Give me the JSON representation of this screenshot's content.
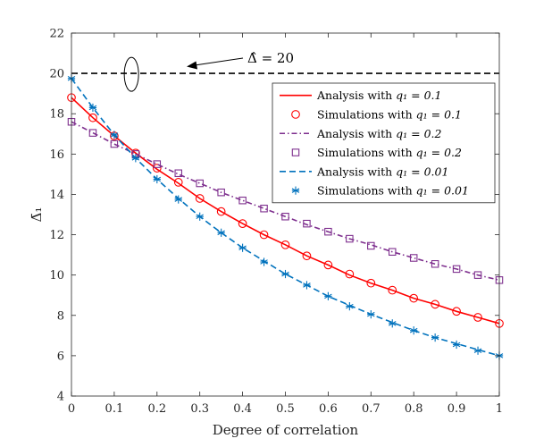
{
  "chart_data": {
    "type": "line",
    "title": "",
    "xlabel": "Degree of correlation",
    "ylabel": "Δ̄₁",
    "xlim": [
      0,
      1
    ],
    "ylim": [
      4,
      22
    ],
    "xticks": [
      0,
      0.1,
      0.2,
      0.3,
      0.4,
      0.5,
      0.6,
      0.7,
      0.8,
      0.9,
      1
    ],
    "xtick_labels": [
      "0",
      "0.1",
      "0.2",
      "0.3",
      "0.4",
      "0.5",
      "0.6",
      "0.7",
      "0.8",
      "0.9",
      "1"
    ],
    "yticks": [
      4,
      6,
      8,
      10,
      12,
      14,
      16,
      18,
      20,
      22
    ],
    "ytick_labels": [
      "4",
      "6",
      "8",
      "10",
      "12",
      "14",
      "16",
      "18",
      "20",
      "22"
    ],
    "grid": false,
    "legend_position": "top-right",
    "colors": {
      "red": "#ff0000",
      "purple": "#7e2f8e",
      "blue": "#0072bd",
      "black": "#000000",
      "axis": "#262626"
    },
    "reference_line": {
      "y": 20,
      "style": "dashed",
      "color": "#000000",
      "annotation": "Δ̂ = 20",
      "annotation_target_x": 0.255
    },
    "x": [
      0,
      0.05,
      0.1,
      0.15,
      0.2,
      0.25,
      0.3,
      0.35,
      0.4,
      0.45,
      0.5,
      0.55,
      0.6,
      0.65,
      0.7,
      0.75,
      0.8,
      0.85,
      0.9,
      0.95,
      1
    ],
    "series": [
      {
        "name": "Analysis with q1 = 0.1",
        "label_prefix": "Analysis with",
        "label_math": "q₁ = 0.1",
        "kind": "line",
        "dash": "solid",
        "marker": "none",
        "color": "#ff0000",
        "values": [
          18.8,
          17.8,
          16.9,
          16.05,
          15.25,
          14.55,
          13.8,
          13.15,
          12.55,
          12.0,
          11.5,
          10.95,
          10.5,
          10.0,
          9.6,
          9.25,
          8.85,
          8.55,
          8.2,
          7.9,
          7.6
        ]
      },
      {
        "name": "Simulations with q1 = 0.1",
        "label_prefix": "Simulations with",
        "label_math": "q₁ = 0.1",
        "kind": "marker",
        "dash": "none",
        "marker": "circle",
        "color": "#ff0000",
        "values": [
          18.8,
          17.8,
          16.9,
          16.05,
          15.3,
          14.6,
          13.8,
          13.15,
          12.55,
          12.0,
          11.5,
          10.95,
          10.5,
          10.05,
          9.6,
          9.25,
          8.85,
          8.55,
          8.2,
          7.9,
          7.6
        ]
      },
      {
        "name": "Analysis with q1 = 0.2",
        "label_prefix": "Analysis with",
        "label_math": "q₁ = 0.2",
        "kind": "line",
        "dash": "dashdot",
        "marker": "none",
        "color": "#7e2f8e",
        "values": [
          17.6,
          17.05,
          16.5,
          16.0,
          15.5,
          15.0,
          14.55,
          14.1,
          13.7,
          13.3,
          12.9,
          12.5,
          12.15,
          11.8,
          11.5,
          11.15,
          10.85,
          10.55,
          10.3,
          10.0,
          9.75
        ]
      },
      {
        "name": "Simulations with q1 = 0.2",
        "label_prefix": "Simulations with",
        "label_math": "q₁ = 0.2",
        "kind": "marker",
        "dash": "none",
        "marker": "square",
        "color": "#7e2f8e",
        "values": [
          17.6,
          17.05,
          16.5,
          16.0,
          15.5,
          15.05,
          14.55,
          14.1,
          13.7,
          13.3,
          12.9,
          12.55,
          12.15,
          11.8,
          11.45,
          11.15,
          10.85,
          10.55,
          10.3,
          10.0,
          9.75
        ]
      },
      {
        "name": "Analysis with q1 = 0.01",
        "label_prefix": "Analysis with",
        "label_math": "q₁ = 0.01",
        "kind": "line",
        "dash": "dashed",
        "marker": "none",
        "color": "#0072bd",
        "values": [
          19.75,
          18.3,
          16.95,
          15.8,
          14.75,
          13.8,
          12.9,
          12.1,
          11.35,
          10.7,
          10.05,
          9.5,
          8.95,
          8.5,
          8.05,
          7.65,
          7.25,
          6.9,
          6.6,
          6.3,
          6.0
        ]
      },
      {
        "name": "Simulations with q1 = 0.01",
        "label_prefix": "Simulations with",
        "label_math": "q₁ = 0.01",
        "kind": "marker",
        "dash": "none",
        "marker": "asterisk",
        "color": "#0072bd",
        "values": [
          19.75,
          18.3,
          16.95,
          15.8,
          14.75,
          13.75,
          12.9,
          12.1,
          11.35,
          10.65,
          10.05,
          9.5,
          8.95,
          8.45,
          8.05,
          7.6,
          7.25,
          6.9,
          6.55,
          6.25,
          6.0
        ]
      }
    ]
  }
}
